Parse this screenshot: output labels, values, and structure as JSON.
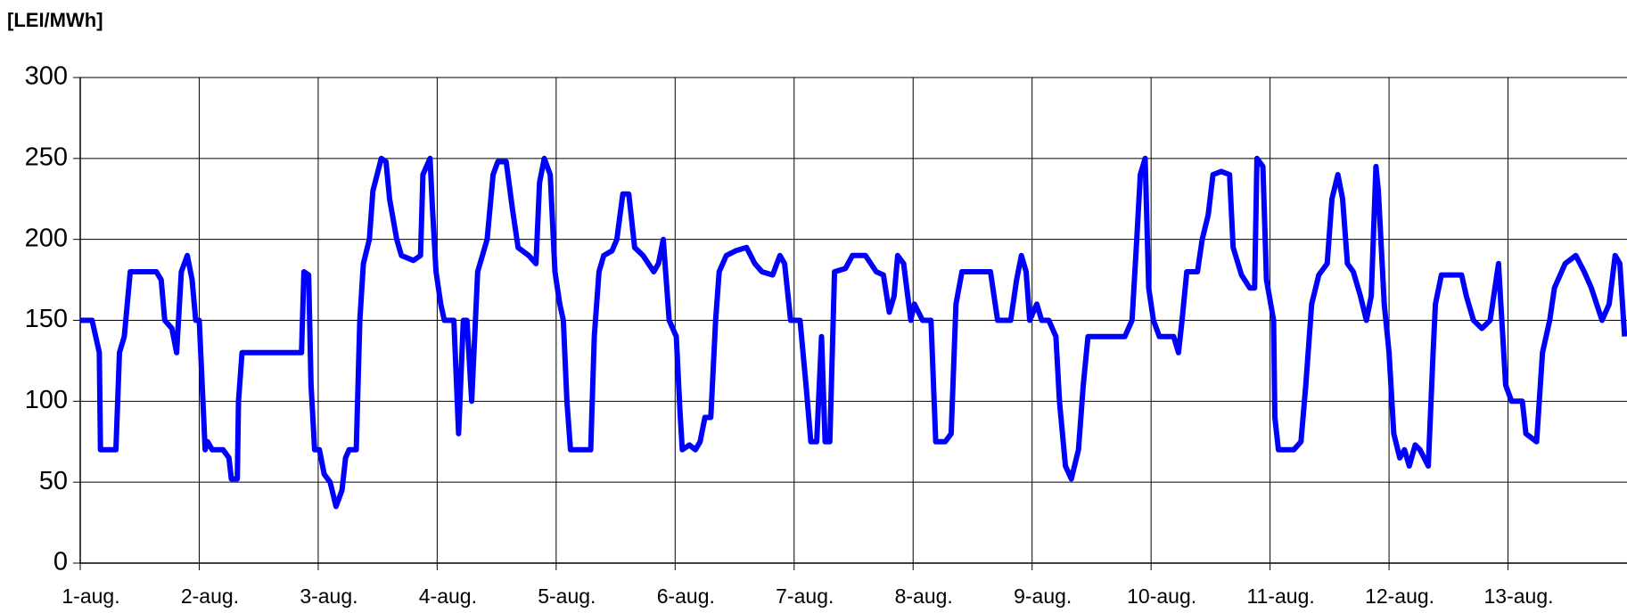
{
  "chart_data": {
    "type": "line",
    "y_axis_label": "[LEI/MWh]",
    "xlim": [
      0,
      13
    ],
    "ylim": [
      0,
      300
    ],
    "yticks": [
      0,
      50,
      100,
      150,
      200,
      250,
      300
    ],
    "xticks": [
      {
        "value": 0,
        "label": "1-aug."
      },
      {
        "value": 1,
        "label": "2-aug."
      },
      {
        "value": 2,
        "label": "3-aug."
      },
      {
        "value": 3,
        "label": "4-aug."
      },
      {
        "value": 4,
        "label": "5-aug."
      },
      {
        "value": 5,
        "label": "6-aug."
      },
      {
        "value": 6,
        "label": "7-aug."
      },
      {
        "value": 7,
        "label": "8-aug."
      },
      {
        "value": 8,
        "label": "9-aug."
      },
      {
        "value": 9,
        "label": "10-aug."
      },
      {
        "value": 10,
        "label": "11-aug."
      },
      {
        "value": 11,
        "label": "12-aug."
      },
      {
        "value": 12,
        "label": "13-aug."
      }
    ],
    "grid": true,
    "x": [
      0,
      0.1,
      0.16,
      0.17,
      0.3,
      0.33,
      0.37,
      0.42,
      0.64,
      0.68,
      0.71,
      0.77,
      0.81,
      0.85,
      0.9,
      0.94,
      0.97,
      1.0,
      1.05,
      1.07,
      1.11,
      1.2,
      1.25,
      1.27,
      1.32,
      1.33,
      1.36,
      1.86,
      1.88,
      1.92,
      1.94,
      1.97,
      2.01,
      2.05,
      2.1,
      2.15,
      2.2,
      2.23,
      2.26,
      2.32,
      2.35,
      2.38,
      2.43,
      2.46,
      2.53,
      2.57,
      2.6,
      2.66,
      2.7,
      2.8,
      2.86,
      2.88,
      2.94,
      2.96,
      2.99,
      3.03,
      3.06,
      3.14,
      3.18,
      3.22,
      3.25,
      3.29,
      3.34,
      3.38,
      3.42,
      3.47,
      3.51,
      3.58,
      3.63,
      3.68,
      3.77,
      3.83,
      3.86,
      3.9,
      3.95,
      3.99,
      4.03,
      4.06,
      4.09,
      4.12,
      4.29,
      4.32,
      4.36,
      4.4,
      4.47,
      4.51,
      4.56,
      4.61,
      4.66,
      4.73,
      4.82,
      4.86,
      4.9,
      4.95,
      5.01,
      5.04,
      5.06,
      5.12,
      5.17,
      5.21,
      5.25,
      5.3,
      5.34,
      5.37,
      5.43,
      5.51,
      5.6,
      5.67,
      5.73,
      5.82,
      5.88,
      5.92,
      5.97,
      6.05,
      6.1,
      6.14,
      6.19,
      6.23,
      6.26,
      6.3,
      6.34,
      6.43,
      6.49,
      6.6,
      6.69,
      6.75,
      6.8,
      6.84,
      6.87,
      6.92,
      6.98,
      7.01,
      7.08,
      7.15,
      7.19,
      7.27,
      7.32,
      7.36,
      7.41,
      7.65,
      7.71,
      7.73,
      7.82,
      7.87,
      7.91,
      7.95,
      7.98,
      8.04,
      8.08,
      8.14,
      8.2,
      8.23,
      8.28,
      8.33,
      8.39,
      8.43,
      8.47,
      8.78,
      8.84,
      8.88,
      8.91,
      8.95,
      8.98,
      9.02,
      9.07,
      9.19,
      9.23,
      9.26,
      9.3,
      9.39,
      9.43,
      9.48,
      9.52,
      9.59,
      9.66,
      9.69,
      9.76,
      9.83,
      9.87,
      9.89,
      9.94,
      9.97,
      10.03,
      10.04,
      10.07,
      10.2,
      10.26,
      10.3,
      10.35,
      10.41,
      10.48,
      10.52,
      10.57,
      10.61,
      10.65,
      10.7,
      10.76,
      10.81,
      10.85,
      10.89,
      10.91,
      10.96,
      11.0,
      11.04,
      11.09,
      11.13,
      11.17,
      11.22,
      11.26,
      11.33,
      11.37,
      11.39,
      11.44,
      11.61,
      11.65,
      11.71,
      11.78,
      11.85,
      11.92,
      11.94,
      11.98,
      12.03,
      12.12,
      12.15,
      12.24,
      12.29,
      12.35,
      12.39,
      12.48,
      12.57,
      12.64,
      12.7,
      12.79,
      12.85,
      12.9,
      12.94,
      12.98
    ],
    "series": [
      {
        "color": "#0000ff",
        "values": [
          150,
          150,
          130,
          70,
          70,
          130,
          140,
          180,
          180,
          175,
          150,
          145,
          130,
          180,
          190,
          175,
          150,
          150,
          70,
          75,
          70,
          70,
          65,
          52,
          52,
          100,
          130,
          130,
          180,
          178,
          110,
          70,
          70,
          55,
          50,
          35,
          45,
          65,
          70,
          70,
          150,
          185,
          200,
          230,
          250,
          248,
          225,
          200,
          190,
          187,
          190,
          240,
          250,
          220,
          180,
          160,
          150,
          150,
          80,
          150,
          150,
          100,
          180,
          190,
          200,
          240,
          248,
          248,
          220,
          195,
          190,
          185,
          235,
          250,
          240,
          180,
          160,
          150,
          100,
          70,
          70,
          140,
          180,
          190,
          193,
          200,
          228,
          228,
          195,
          190,
          180,
          185,
          200,
          150,
          140,
          95,
          70,
          73,
          70,
          75,
          90,
          90,
          150,
          180,
          190,
          193,
          195,
          185,
          180,
          178,
          190,
          185,
          150,
          150,
          110,
          75,
          75,
          140,
          75,
          75,
          180,
          182,
          190,
          190,
          180,
          178,
          155,
          165,
          190,
          185,
          150,
          160,
          150,
          150,
          75,
          75,
          80,
          160,
          180,
          180,
          150,
          150,
          150,
          175,
          190,
          180,
          150,
          160,
          150,
          150,
          140,
          100,
          60,
          52,
          70,
          110,
          140,
          140,
          150,
          200,
          240,
          250,
          170,
          150,
          140,
          140,
          130,
          150,
          180,
          180,
          200,
          215,
          240,
          242,
          240,
          195,
          178,
          170,
          170,
          250,
          245,
          175,
          150,
          90,
          70,
          70,
          75,
          110,
          160,
          178,
          185,
          225,
          240,
          225,
          185,
          180,
          165,
          150,
          165,
          245,
          230,
          160,
          130,
          80,
          65,
          70,
          60,
          73,
          70,
          60,
          130,
          160,
          178,
          178,
          165,
          150,
          145,
          150,
          185,
          160,
          110,
          100,
          100,
          80,
          75,
          130,
          150,
          170,
          185,
          190,
          180,
          170,
          150,
          160,
          190,
          185,
          140
        ]
      }
    ]
  }
}
